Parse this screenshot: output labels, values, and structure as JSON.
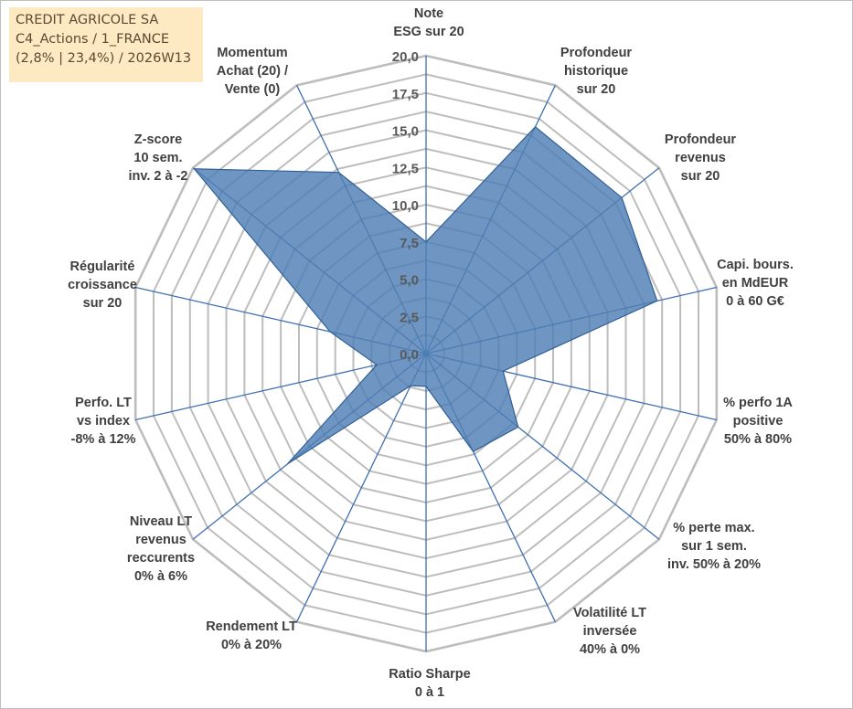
{
  "info_box": {
    "line1": "CREDIT AGRICOLE SA",
    "line2": "C4_Actions / 1_FRANCE",
    "line3": "(2,8% | 23,4%) / 2026W13"
  },
  "colors": {
    "area_fill": "#4f7fb5",
    "area_stroke": "#2e5f96",
    "spoke": "#3f6fb0",
    "ring": "#bdbdbd",
    "tick_text": "#595959",
    "label_text": "#404040"
  },
  "chart_data": {
    "type": "radar",
    "rmin": 0,
    "rmax": 20,
    "ticks": [
      "0,0",
      "2,5",
      "5,0",
      "7,5",
      "10,0",
      "12,5",
      "15,0",
      "17,5",
      "20,0"
    ],
    "axes": [
      {
        "label_lines": [
          "Note",
          "ESG sur 20"
        ]
      },
      {
        "label_lines": [
          "Profondeur",
          "historique",
          "sur 20"
        ]
      },
      {
        "label_lines": [
          "Profondeur",
          "revenus",
          "sur 20"
        ]
      },
      {
        "label_lines": [
          "Capi. bours.",
          "en MdEUR",
          "0 à 60 G€"
        ]
      },
      {
        "label_lines": [
          "% perfo 1A",
          "positive",
          "50% à 80%"
        ]
      },
      {
        "label_lines": [
          "% perte max.",
          "sur 1 sem.",
          "inv. 50% à 20%"
        ]
      },
      {
        "label_lines": [
          "Volatilité LT",
          "inversée",
          "40% à 0%"
        ]
      },
      {
        "label_lines": [
          "Ratio Sharpe",
          "0 à 1"
        ]
      },
      {
        "label_lines": [
          "Rendement LT",
          "0% à 20%"
        ]
      },
      {
        "label_lines": [
          "Niveau LT",
          "revenus",
          "reccurents",
          "0% à 6%"
        ]
      },
      {
        "label_lines": [
          "Perfo. LT",
          "vs index",
          "-8% à 12%"
        ]
      },
      {
        "label_lines": [
          "Régularité",
          "croissance",
          "sur 20"
        ]
      },
      {
        "label_lines": [
          "Z-score",
          "10 sem.",
          "inv. 2 à -2"
        ]
      },
      {
        "label_lines": [
          "Momentum",
          "Achat (20) /",
          "Vente (0)"
        ]
      }
    ],
    "values": [
      7.5,
      16.9,
      16.8,
      15.9,
      5.3,
      7.9,
      7.3,
      2.2,
      2.4,
      11.9,
      3.4,
      6.6,
      19.9,
      13.5
    ]
  }
}
